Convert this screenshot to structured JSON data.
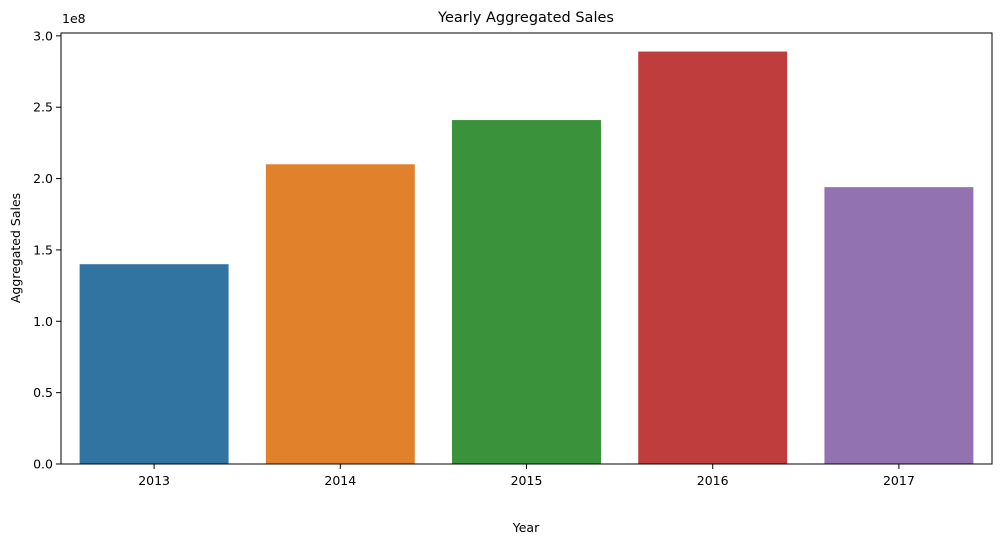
{
  "chart_data": {
    "type": "bar",
    "title": "Yearly Aggregated Sales",
    "xlabel": "Year",
    "ylabel": "Aggregated Sales",
    "y_offset_label": "1e8",
    "categories": [
      "2013",
      "2014",
      "2015",
      "2016",
      "2017"
    ],
    "values": [
      140000000,
      210000000,
      241000000,
      289000000,
      194000000
    ],
    "colors": [
      "#3274a1",
      "#e1812c",
      "#3a923a",
      "#c03d3e",
      "#9372b2"
    ],
    "ylim": [
      0,
      302000000
    ],
    "y_ticks": [
      0,
      50000000,
      100000000,
      150000000,
      200000000,
      250000000,
      300000000
    ],
    "y_tick_labels": [
      "0.0",
      "0.5",
      "1.0",
      "1.5",
      "2.0",
      "2.5",
      "3.0"
    ],
    "grid": false,
    "legend": "none"
  }
}
